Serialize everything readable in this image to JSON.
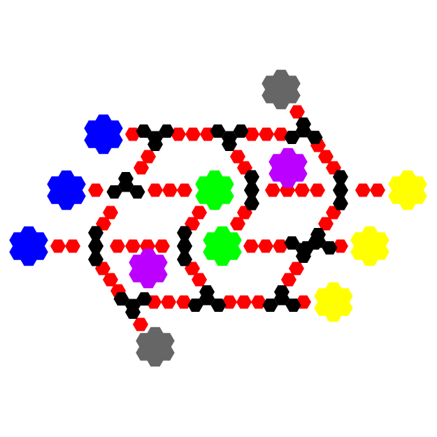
{
  "colors": {
    "background": "#ffffff",
    "path": "#ff0000",
    "junction": "#000000",
    "blue": "#0000ff",
    "yellow": "#ffff00",
    "gray": "#666666",
    "purple": "#bb00ff",
    "green": "#00ff00"
  },
  "board": {
    "piece_shape": "hexagon",
    "node_types": [
      "junction",
      "path",
      "blue-flower",
      "yellow-flower",
      "gray-flower",
      "purple-flower",
      "green-flower"
    ]
  }
}
